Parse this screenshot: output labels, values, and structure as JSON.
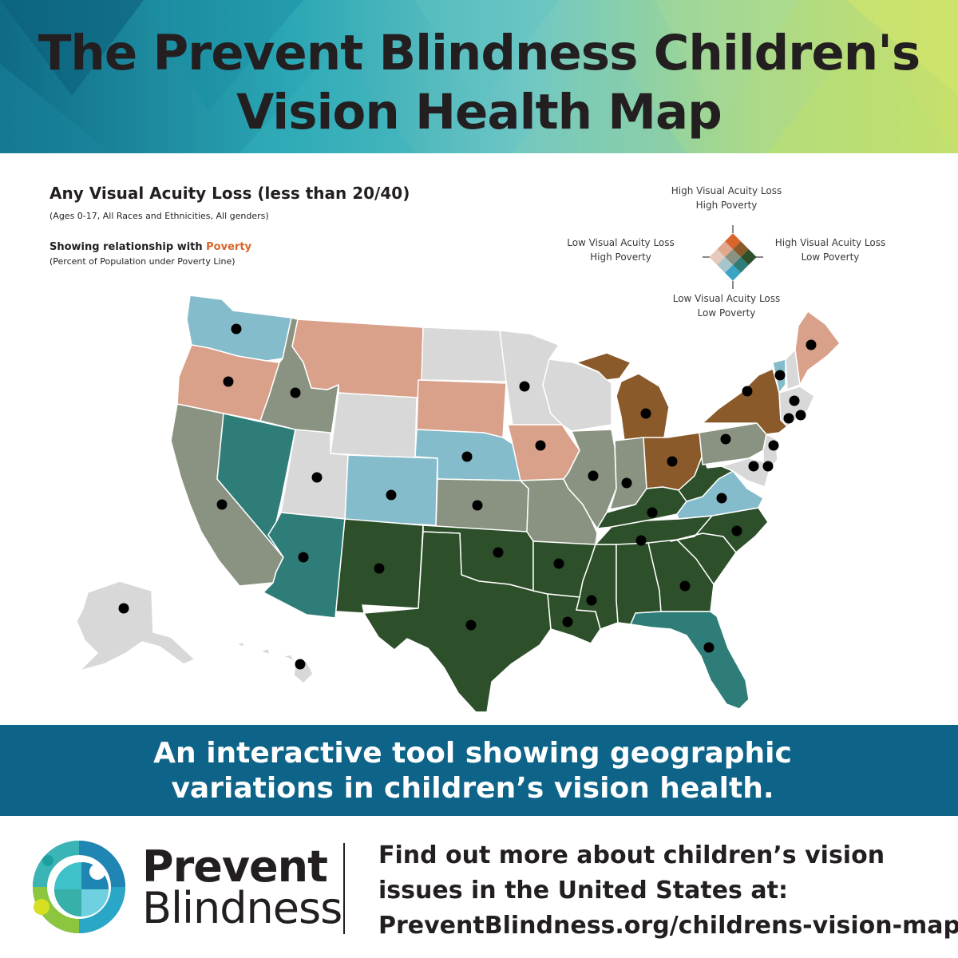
{
  "header": {
    "title_line1": "The Prevent Blindness Children's",
    "title_line2": "Vision Health Map"
  },
  "map": {
    "title": "Any Visual Acuity Loss (less than 20/40)",
    "subtitle": "(Ages 0-17, All Races and Ethnicities, All genders)",
    "relationship_prefix": "Showing relationship with ",
    "relationship_highlight": "Poverty",
    "relationship_sub": "(Percent of Population under Poverty Line)",
    "highlight_color": "#d9652b",
    "legend": {
      "top_line1": "High Visual Acuity Loss",
      "top_line2": "High Poverty",
      "left_line1": "Low Visual Acuity Loss",
      "left_line2": "High Poverty",
      "right_line1": "High Visual Acuity Loss",
      "right_line2": "Low Poverty",
      "bottom_line1": "Low Visual Acuity Loss",
      "bottom_line2": "Low Poverty"
    },
    "palette": {
      "high_high": "#2d4f2a",
      "high_mid": "#2f7d78",
      "high_low": "#85bccb",
      "mid_high": "#8a5a2b",
      "mid_mid": "#8a9381",
      "low_high": "#d9a08a",
      "low_low": "#d8d8d8"
    },
    "marker_icon": "dot-icon"
  },
  "banner": {
    "line1": "An interactive tool showing geographic",
    "line2": "variations in children’s vision health."
  },
  "footer": {
    "logo_word1": "Prevent",
    "logo_word2": "Blindness",
    "logo_icon": "eye-logo-icon",
    "cta_line1": "Find out more about children’s vision",
    "cta_line2": "issues in the United States at:",
    "cta_line3": "PreventBlindness.org/childrens-vision-map"
  }
}
